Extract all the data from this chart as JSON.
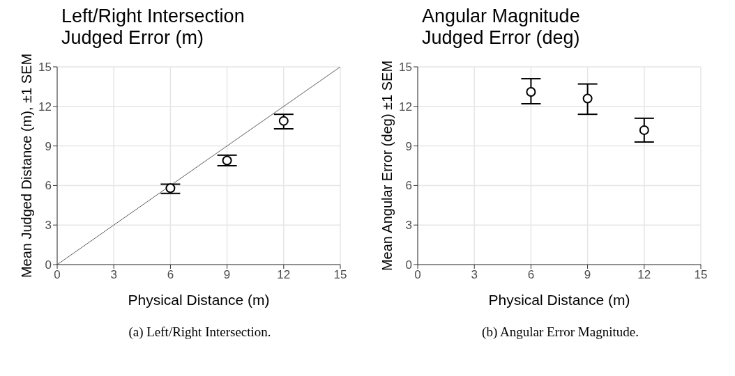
{
  "chart_data": [
    {
      "type": "scatter",
      "title": "Left/Right Intersection\nJudged Error (m)",
      "xlabel": "Physical Distance (m)",
      "ylabel": "Mean Judged Distance (m), ±1 SEM",
      "xlim": [
        0,
        15
      ],
      "ylim": [
        0,
        15
      ],
      "xticks": [
        0,
        3,
        6,
        9,
        12,
        15
      ],
      "yticks": [
        0,
        3,
        6,
        9,
        12,
        15
      ],
      "grid": true,
      "annotations": [
        "(a) Left/Right Intersection."
      ],
      "series": [
        {
          "type": "line",
          "x": [
            0,
            15
          ],
          "values": [
            0,
            15
          ],
          "color": "#333333",
          "marker": "none"
        },
        {
          "x": [
            6,
            9,
            12
          ],
          "values": [
            5.8,
            7.9,
            10.9
          ],
          "errors": [
            [
              5.4,
              6.1
            ],
            [
              7.5,
              8.3
            ],
            [
              10.3,
              11.4
            ]
          ],
          "color": "#000000",
          "marker": "circle"
        }
      ]
    },
    {
      "type": "scatter",
      "title": "Angular Magnitude\nJudged Error (deg)",
      "xlabel": "Physical Distance (m)",
      "ylabel": "Mean Angular Error (deg) ±1 SEM",
      "xlim": [
        0,
        15
      ],
      "ylim": [
        0,
        15
      ],
      "xticks": [
        0,
        3,
        6,
        9,
        12,
        15
      ],
      "yticks": [
        0,
        3,
        6,
        9,
        12,
        15
      ],
      "grid": true,
      "marker": "circle",
      "annotations": [
        "(b) Angular Error Magnitude."
      ],
      "series": [
        {
          "x": [
            6,
            9,
            12
          ],
          "values": [
            13.1,
            12.6,
            10.2
          ],
          "errors": [
            [
              12.2,
              14.1
            ],
            [
              11.4,
              13.7
            ],
            [
              9.3,
              11.1
            ]
          ],
          "color": "#000000"
        }
      ]
    }
  ]
}
